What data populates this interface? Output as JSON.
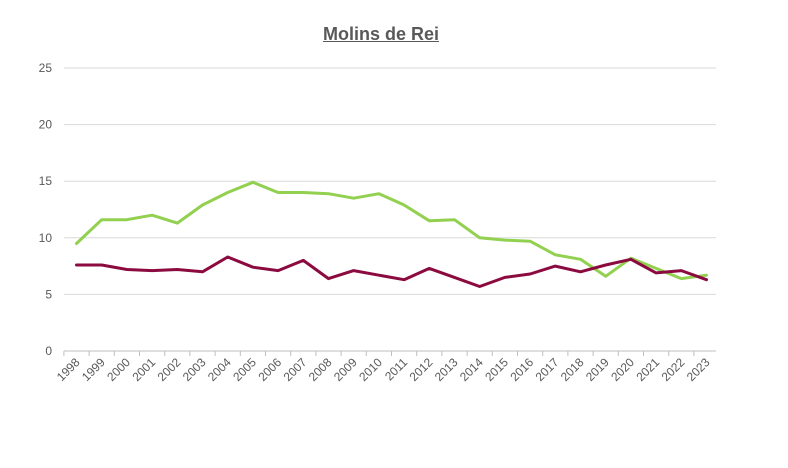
{
  "chart_data": {
    "type": "line",
    "title": "Molins de Rei",
    "xlabel": "",
    "ylabel": "",
    "ylim": [
      0,
      25
    ],
    "yticks": [
      0,
      5,
      10,
      15,
      20,
      25
    ],
    "grid": true,
    "legend": "none",
    "categories": [
      "1998",
      "1999",
      "2000",
      "2001",
      "2002",
      "2003",
      "2004",
      "2005",
      "2006",
      "2007",
      "2008",
      "2009",
      "2010",
      "2011",
      "2012",
      "2013",
      "2014",
      "2015",
      "2016",
      "2017",
      "2018",
      "2019",
      "2020",
      "2021",
      "2022",
      "2023"
    ],
    "series": [
      {
        "color": "#92D050",
        "values": [
          9.5,
          11.6,
          11.6,
          12.0,
          11.3,
          12.9,
          14.0,
          14.9,
          14.0,
          14.0,
          13.9,
          13.5,
          13.9,
          12.9,
          11.5,
          11.6,
          10.0,
          9.8,
          9.7,
          8.5,
          8.1,
          6.6,
          8.2,
          7.3,
          6.4,
          6.7
        ]
      },
      {
        "color": "#8B0A3F",
        "values": [
          7.6,
          7.6,
          7.2,
          7.1,
          7.2,
          7.0,
          8.3,
          7.4,
          7.1,
          8.0,
          6.4,
          7.1,
          6.7,
          6.3,
          7.3,
          6.5,
          5.7,
          6.5,
          6.8,
          7.5,
          7.0,
          7.6,
          8.1,
          6.9,
          7.1,
          6.3
        ]
      }
    ]
  }
}
